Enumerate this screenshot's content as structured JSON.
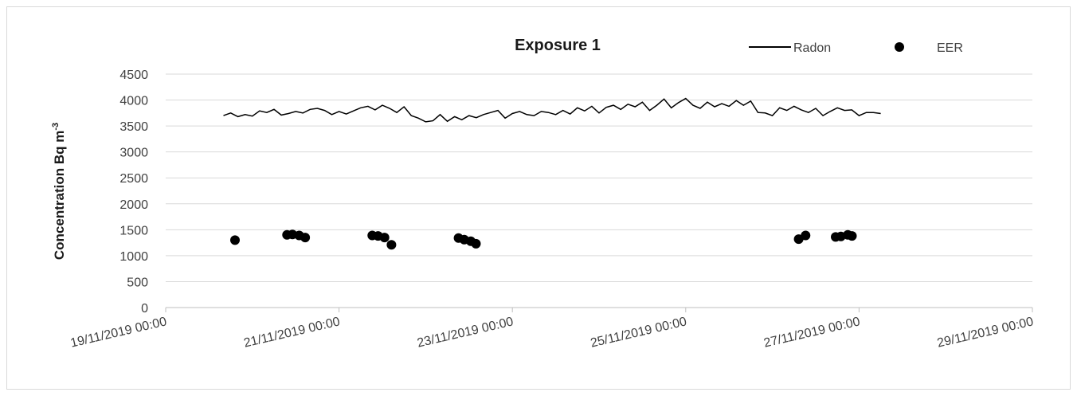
{
  "chart_data": {
    "type": "line",
    "title": "Exposure 1",
    "ylabel": "Concentration Bq m",
    "ylabel_superscript": "-3",
    "xlabel": "",
    "ylim": [
      0,
      4500
    ],
    "yticks": [
      0,
      500,
      1000,
      1500,
      2000,
      2500,
      3000,
      3500,
      4000,
      4500
    ],
    "xlim": [
      "19/11/2019 00:00",
      "29/11/2019 00:00"
    ],
    "xticks": [
      "19/11/2019 00:00",
      "21/11/2019 00:00",
      "23/11/2019 00:00",
      "25/11/2019 00:00",
      "27/11/2019 00:00",
      "29/11/2019 00:00"
    ],
    "grid": true,
    "legend_position": "top-right",
    "series": [
      {
        "name": "Radon",
        "kind": "line",
        "color": "#000000",
        "x": [
          "2019-11-19T16:00",
          "2019-11-19T18:00",
          "2019-11-19T20:00",
          "2019-11-19T22:00",
          "2019-11-20T00:00",
          "2019-11-20T02:00",
          "2019-11-20T04:00",
          "2019-11-20T06:00",
          "2019-11-20T08:00",
          "2019-11-20T10:00",
          "2019-11-20T12:00",
          "2019-11-20T14:00",
          "2019-11-20T16:00",
          "2019-11-20T18:00",
          "2019-11-20T20:00",
          "2019-11-20T22:00",
          "2019-11-21T00:00",
          "2019-11-21T02:00",
          "2019-11-21T04:00",
          "2019-11-21T06:00",
          "2019-11-21T08:00",
          "2019-11-21T10:00",
          "2019-11-21T12:00",
          "2019-11-21T14:00",
          "2019-11-21T16:00",
          "2019-11-21T18:00",
          "2019-11-21T20:00",
          "2019-11-21T22:00",
          "2019-11-22T00:00",
          "2019-11-22T02:00",
          "2019-11-22T04:00",
          "2019-11-22T06:00",
          "2019-11-22T08:00",
          "2019-11-22T10:00",
          "2019-11-22T12:00",
          "2019-11-22T14:00",
          "2019-11-22T16:00",
          "2019-11-22T18:00",
          "2019-11-22T20:00",
          "2019-11-22T22:00",
          "2019-11-23T00:00",
          "2019-11-23T02:00",
          "2019-11-23T04:00",
          "2019-11-23T06:00",
          "2019-11-23T08:00",
          "2019-11-23T10:00",
          "2019-11-23T12:00",
          "2019-11-23T14:00",
          "2019-11-23T16:00",
          "2019-11-23T18:00",
          "2019-11-23T20:00",
          "2019-11-23T22:00",
          "2019-11-24T00:00",
          "2019-11-24T02:00",
          "2019-11-24T04:00",
          "2019-11-24T06:00",
          "2019-11-24T08:00",
          "2019-11-24T10:00",
          "2019-11-24T12:00",
          "2019-11-24T14:00",
          "2019-11-24T16:00",
          "2019-11-24T18:00",
          "2019-11-24T20:00",
          "2019-11-24T22:00",
          "2019-11-25T00:00",
          "2019-11-25T02:00",
          "2019-11-25T04:00",
          "2019-11-25T06:00",
          "2019-11-25T08:00",
          "2019-11-25T10:00",
          "2019-11-25T12:00",
          "2019-11-25T14:00",
          "2019-11-25T16:00",
          "2019-11-25T18:00",
          "2019-11-25T20:00",
          "2019-11-25T22:00",
          "2019-11-26T00:00",
          "2019-11-26T02:00",
          "2019-11-26T04:00",
          "2019-11-26T06:00",
          "2019-11-26T08:00",
          "2019-11-26T10:00",
          "2019-11-26T12:00",
          "2019-11-26T14:00",
          "2019-11-26T16:00",
          "2019-11-26T18:00",
          "2019-11-26T20:00",
          "2019-11-26T22:00",
          "2019-11-27T00:00",
          "2019-11-27T02:00",
          "2019-11-27T04:00",
          "2019-11-27T06:00"
        ],
        "y": [
          3700,
          3750,
          3680,
          3720,
          3690,
          3790,
          3760,
          3820,
          3710,
          3740,
          3780,
          3750,
          3820,
          3840,
          3800,
          3720,
          3780,
          3730,
          3790,
          3850,
          3880,
          3810,
          3900,
          3840,
          3760,
          3870,
          3700,
          3650,
          3580,
          3600,
          3720,
          3590,
          3680,
          3620,
          3700,
          3660,
          3720,
          3760,
          3800,
          3650,
          3740,
          3780,
          3720,
          3700,
          3780,
          3760,
          3720,
          3800,
          3730,
          3850,
          3790,
          3880,
          3750,
          3860,
          3900,
          3820,
          3920,
          3870,
          3960,
          3800,
          3900,
          4020,
          3850,
          3950,
          4030,
          3900,
          3840,
          3960,
          3870,
          3930,
          3880,
          3990,
          3900,
          3980,
          3760,
          3750,
          3700,
          3850,
          3800,
          3880,
          3810,
          3760,
          3840,
          3700,
          3780,
          3850,
          3800,
          3810,
          3700,
          3760,
          3760,
          3740
        ]
      },
      {
        "name": "EER",
        "kind": "scatter",
        "color": "#000000",
        "x": [
          "2019-11-19T19:12",
          "2019-11-20T09:36",
          "2019-11-20T11:06",
          "2019-11-20T12:58",
          "2019-11-20T14:38",
          "2019-11-21T09:12",
          "2019-11-21T10:48",
          "2019-11-21T12:36",
          "2019-11-21T14:31",
          "2019-11-22T09:05",
          "2019-11-22T10:41",
          "2019-11-22T12:29",
          "2019-11-22T13:55",
          "2019-11-26T07:17",
          "2019-11-26T09:12",
          "2019-11-26T17:31",
          "2019-11-26T18:58",
          "2019-11-26T20:53",
          "2019-11-26T22:02"
        ],
        "y": [
          1300,
          1400,
          1410,
          1390,
          1350,
          1390,
          1380,
          1350,
          1210,
          1340,
          1310,
          1280,
          1230,
          1320,
          1390,
          1360,
          1370,
          1400,
          1380
        ]
      }
    ]
  }
}
